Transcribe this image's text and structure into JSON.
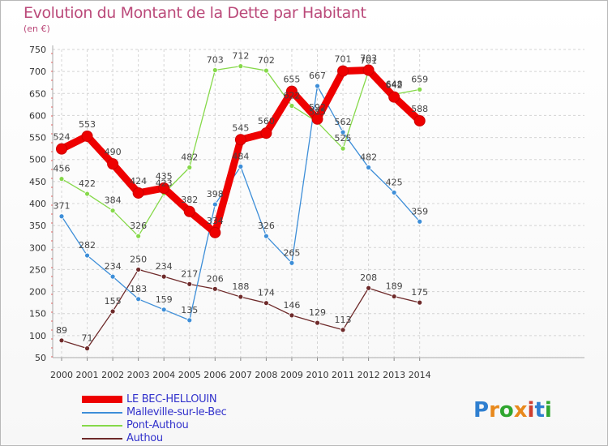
{
  "header": {
    "title": "Evolution du Montant de la Dette par Habitant",
    "subtitle": "(en €)"
  },
  "logo": {
    "text": "Proxiti"
  },
  "chart_data": {
    "type": "line",
    "title": "Evolution du Montant de la Dette par Habitant",
    "subtitle": "(en €)",
    "xlabel": "",
    "ylabel": "",
    "ylim": [
      50,
      750
    ],
    "yticks": [
      50,
      100,
      150,
      200,
      250,
      300,
      350,
      400,
      450,
      500,
      550,
      600,
      650,
      700,
      750
    ],
    "grid": true,
    "legend_position": "bottom-left",
    "categories": [
      "2000",
      "2001",
      "2002",
      "2003",
      "2004",
      "2005",
      "2006",
      "2007",
      "2008",
      "2009",
      "2010",
      "2011",
      "2012",
      "2013",
      "2014"
    ],
    "series": [
      {
        "name": "LE BEC-HELLOUIN",
        "color": "#ee0000",
        "values": [
          524,
          553,
          490,
          424,
          435,
          382,
          334,
          545,
          560,
          655,
          592,
          701,
          703,
          642,
          588
        ]
      },
      {
        "name": "Malleville-sur-le-Bec",
        "color": "#3d8ed8",
        "values": [
          371,
          282,
          234,
          183,
          159,
          135,
          398,
          484,
          326,
          265,
          667,
          562,
          482,
          425,
          359
        ]
      },
      {
        "name": "Pont-Authou",
        "color": "#86d94a",
        "values": [
          456,
          422,
          384,
          326,
          423,
          482,
          703,
          712,
          702,
          622,
          585,
          525,
          701,
          648,
          659
        ]
      },
      {
        "name": "Authou",
        "color": "#6e2a2a",
        "values": [
          89,
          71,
          155,
          250,
          234,
          217,
          206,
          188,
          174,
          146,
          129,
          113,
          208,
          189,
          175
        ]
      }
    ]
  }
}
